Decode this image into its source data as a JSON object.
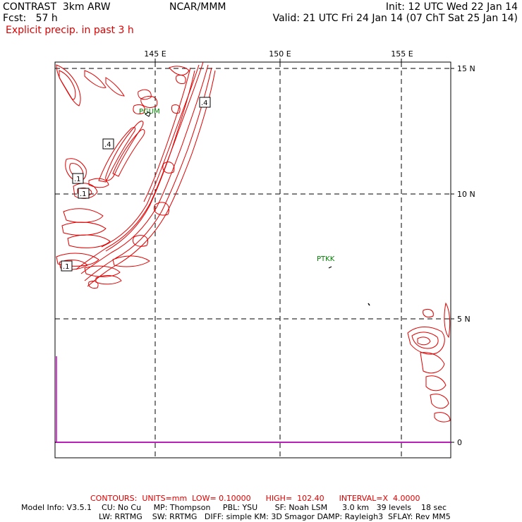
{
  "header": {
    "model_title": "CONTRAST  3km ARW",
    "forecast": "Fcst:   57 h",
    "product": "Explicit precip. in past 3 h",
    "center": "NCAR/MMM",
    "init": "Init: 12 UTC Wed 22 Jan 14",
    "valid": "Valid: 21 UTC Fri 24 Jan 14 (07 ChT Sat 25 Jan 14)"
  },
  "map": {
    "lon_labels": [
      "145 E",
      "150 E",
      "155 E"
    ],
    "lat_labels": [
      "15 N",
      "10 N",
      "5 N",
      "0"
    ],
    "stations": [
      "PGUM",
      "PTKK"
    ],
    "contour_labels": [
      ".4",
      ".4",
      ".1",
      ".1",
      ".1"
    ],
    "colors": {
      "contour": "#e00000",
      "station": "#008000",
      "grid": "#000000",
      "accent": "#cc00cc"
    }
  },
  "footer": {
    "contours": "CONTOURS:  UNITS=mm  LOW= 0.10000      HIGH=  102.40      INTERVAL=X  4.0000",
    "model_info_1": "Model Info: V3.5.1    CU: No Cu     MP: Thompson     PBL: YSU       SF: Noah LSM      3.0 km   39 levels    18 sec",
    "model_info_2": "LW: RRTMG    SW: RRTMG   DIFF: simple KM: 3D Smagor DAMP: Rayleigh3  SFLAY: Rev MM5"
  }
}
